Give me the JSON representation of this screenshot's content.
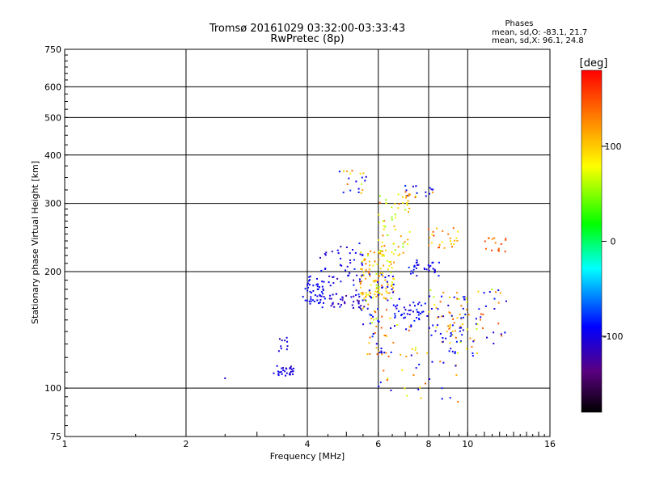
{
  "chart_data": {
    "type": "scatter",
    "title": "Tromsø 20161029 03:32:00-03:33:43",
    "subtitle": "RwPretec (8p)",
    "xlabel": "Frequency [MHz]",
    "ylabel": "Stationary phase Virtual Height [km]",
    "x_scale": "log",
    "y_scale": "log",
    "xlim": [
      1,
      16
    ],
    "ylim": [
      75,
      750
    ],
    "x_ticks": [
      {
        "value": 1,
        "label": "1"
      },
      {
        "value": 2,
        "label": "2"
      },
      {
        "value": 4,
        "label": "4"
      },
      {
        "value": 6,
        "label": "6"
      },
      {
        "value": 8,
        "label": "8"
      },
      {
        "value": 10,
        "label": "10"
      },
      {
        "value": 16,
        "label": "16"
      }
    ],
    "y_ticks": [
      {
        "value": 75,
        "label": "75"
      },
      {
        "value": 100,
        "label": "100"
      },
      {
        "value": 200,
        "label": "200"
      },
      {
        "value": 300,
        "label": "300"
      },
      {
        "value": 400,
        "label": "400"
      },
      {
        "value": 500,
        "label": "500"
      },
      {
        "value": 600,
        "label": "600"
      },
      {
        "value": 750,
        "label": "750"
      }
    ],
    "x_gridlines": [
      2,
      4,
      6,
      8,
      10
    ],
    "y_gridlines": [
      100,
      200,
      300,
      400,
      500,
      600
    ],
    "grid": true,
    "phase_stats": {
      "heading": "Phases",
      "o_line": "mean, sd,O: -83.1, 21.7",
      "x_line": "mean, sd,X:  96.1, 24.8"
    },
    "colorbar": {
      "label": "[deg]",
      "range": [
        -180,
        180
      ],
      "ticks": [
        {
          "value": 100,
          "label": "100"
        },
        {
          "value": 0,
          "label": "0"
        },
        {
          "value": -100,
          "label": "-100"
        }
      ],
      "colormap": "rainbow (black-purple-blue-cyan-green-yellow-red)"
    },
    "clusters": [
      {
        "x": [
          2.5,
          2.5
        ],
        "y": [
          106,
          106
        ],
        "phase": [
          -110,
          -110
        ],
        "n": 1
      },
      {
        "x": [
          3.3,
          3.7
        ],
        "y": [
          107,
          115
        ],
        "phase": [
          -110,
          -90
        ],
        "n": 30
      },
      {
        "x": [
          3.4,
          3.6
        ],
        "y": [
          120,
          135
        ],
        "phase": [
          -115,
          -95
        ],
        "n": 10
      },
      {
        "x": [
          3.9,
          4.4
        ],
        "y": [
          165,
          195
        ],
        "phase": [
          -105,
          -85
        ],
        "n": 45
      },
      {
        "x": [
          4.3,
          5.5
        ],
        "y": [
          160,
          240
        ],
        "phase": [
          -120,
          -80
        ],
        "n": 70
      },
      {
        "x": [
          4.6,
          5.6
        ],
        "y": [
          160,
          175
        ],
        "phase": [
          -130,
          -90
        ],
        "n": 25
      },
      {
        "x": [
          4.8,
          5.6
        ],
        "y": [
          310,
          365
        ],
        "phase": [
          -100,
          110
        ],
        "n": 20
      },
      {
        "x": [
          5.4,
          6.6
        ],
        "y": [
          170,
          230
        ],
        "phase": [
          60,
          140
        ],
        "n": 90
      },
      {
        "x": [
          5.4,
          6.6
        ],
        "y": [
          150,
          200
        ],
        "phase": [
          -110,
          140
        ],
        "n": 60
      },
      {
        "x": [
          6.0,
          7.2
        ],
        "y": [
          220,
          320
        ],
        "phase": [
          50,
          140
        ],
        "n": 60
      },
      {
        "x": [
          6.5,
          8.0
        ],
        "y": [
          150,
          170
        ],
        "phase": [
          -110,
          -80
        ],
        "n": 40
      },
      {
        "x": [
          7.0,
          8.5
        ],
        "y": [
          195,
          215
        ],
        "phase": [
          -110,
          -80
        ],
        "n": 30
      },
      {
        "x": [
          7.0,
          8.2
        ],
        "y": [
          310,
          335
        ],
        "phase": [
          -110,
          140
        ],
        "n": 20
      },
      {
        "x": [
          8.0,
          9.5
        ],
        "y": [
          230,
          260
        ],
        "phase": [
          80,
          160
        ],
        "n": 25
      },
      {
        "x": [
          8.0,
          10.0
        ],
        "y": [
          130,
          180
        ],
        "phase": [
          -110,
          120
        ],
        "n": 60
      },
      {
        "x": [
          9.0,
          10.8
        ],
        "y": [
          120,
          160
        ],
        "phase": [
          -120,
          120
        ],
        "n": 40
      },
      {
        "x": [
          10.5,
          12.5
        ],
        "y": [
          130,
          180
        ],
        "phase": [
          -100,
          120
        ],
        "n": 25
      },
      {
        "x": [
          11.0,
          12.5
        ],
        "y": [
          225,
          245
        ],
        "phase": [
          120,
          160
        ],
        "n": 15
      },
      {
        "x": [
          6.0,
          9.5
        ],
        "y": [
          92,
          125
        ],
        "phase": [
          -110,
          160
        ],
        "n": 35
      },
      {
        "x": [
          5.5,
          7.5
        ],
        "y": [
          120,
          150
        ],
        "phase": [
          -110,
          140
        ],
        "n": 40
      }
    ]
  }
}
